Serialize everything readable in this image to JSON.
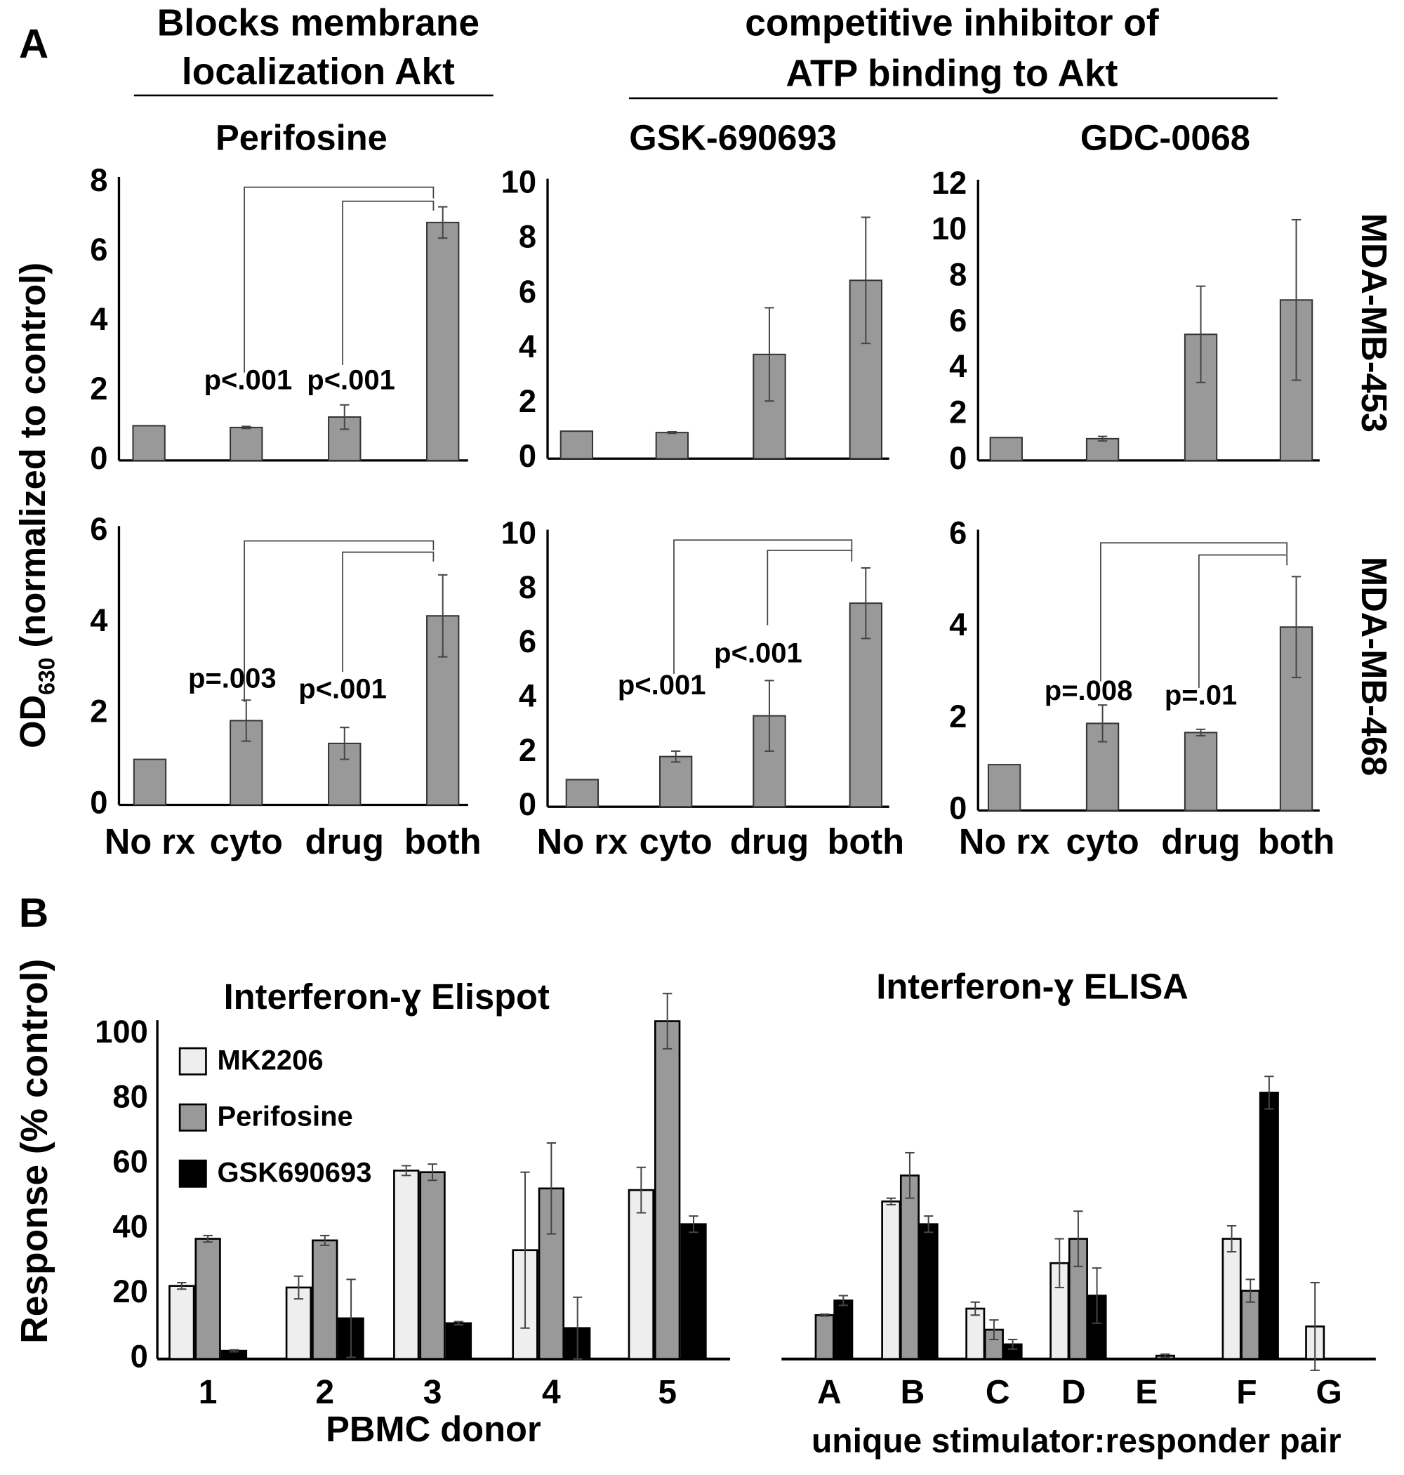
{
  "panel_labels": {
    "a": "A",
    "b": "B"
  },
  "headers": {
    "group1_line1": "Blocks membrane",
    "group1_line2": "localization Akt",
    "group2_line1": "competitive inhibitor of",
    "group2_line2": "ATP binding to Akt"
  },
  "row_labels": [
    "MDA-MB-453",
    "MDA-MB-468"
  ],
  "ylabel_a": "OD",
  "ylabel_a_sub": "630",
  "ylabel_a_rest": " (normalized to control)",
  "ylabel_b": "Response (% control)",
  "colors": {
    "mk2206": "#eeeeee",
    "perifosine": "#999999",
    "gsk690693": "#000000",
    "panel_a_bar": "#999999"
  },
  "chart_data": [
    {
      "type": "bar",
      "title": "Perifosine",
      "row": "MDA-MB-453",
      "ylim": [
        0,
        8
      ],
      "yticks": [
        0,
        2,
        4,
        6,
        8
      ],
      "values": [
        1.0,
        0.95,
        1.25,
        6.85
      ],
      "errors": [
        0,
        0.03,
        0.35,
        0.45
      ],
      "annotations": [
        {
          "from": 1,
          "to": 3,
          "label": "p<.001"
        },
        {
          "from": 2,
          "to": 3,
          "label": "p<.001"
        }
      ]
    },
    {
      "type": "bar",
      "title": "GSK-690693",
      "row": "MDA-MB-453",
      "ylim": [
        0,
        10
      ],
      "yticks": [
        0,
        2,
        4,
        6,
        8,
        10
      ],
      "values": [
        1.0,
        0.95,
        3.8,
        6.5
      ],
      "errors": [
        0,
        0.03,
        1.7,
        2.3
      ],
      "annotations": []
    },
    {
      "type": "bar",
      "title": "GDC-0068",
      "row": "MDA-MB-453",
      "ylim": [
        0,
        12
      ],
      "yticks": [
        0,
        2,
        4,
        6,
        8,
        10,
        12
      ],
      "values": [
        1.0,
        0.95,
        5.5,
        7.0
      ],
      "errors": [
        0,
        0.1,
        2.1,
        3.5
      ],
      "annotations": []
    },
    {
      "type": "bar",
      "row": "MDA-MB-468",
      "ylim": [
        0,
        6
      ],
      "yticks": [
        0,
        2,
        4,
        6
      ],
      "categories": [
        "No rx",
        "cyto",
        "drug",
        "both"
      ],
      "values": [
        1.0,
        1.85,
        1.35,
        4.15
      ],
      "errors": [
        0,
        0.45,
        0.35,
        0.9
      ],
      "annotations": [
        {
          "from": 1,
          "to": 3,
          "label": "p=.003"
        },
        {
          "from": 2,
          "to": 3,
          "label": "p<.001"
        }
      ]
    },
    {
      "type": "bar",
      "row": "MDA-MB-468",
      "ylim": [
        0,
        10
      ],
      "yticks": [
        0,
        2,
        4,
        6,
        8,
        10
      ],
      "categories": [
        "No rx",
        "cyto",
        "drug",
        "both"
      ],
      "values": [
        1.0,
        1.85,
        3.35,
        7.5
      ],
      "errors": [
        0,
        0.2,
        1.3,
        1.3
      ],
      "annotations": [
        {
          "from": 1,
          "to": 3,
          "label": "p<.001"
        },
        {
          "from": 2,
          "to": 3,
          "label": "p<.001"
        }
      ]
    },
    {
      "type": "bar",
      "row": "MDA-MB-468",
      "ylim": [
        0,
        6
      ],
      "yticks": [
        0,
        2,
        4,
        6
      ],
      "categories": [
        "No rx",
        "cyto",
        "drug",
        "both"
      ],
      "values": [
        1.0,
        1.9,
        1.7,
        4.0
      ],
      "errors": [
        0,
        0.4,
        0.07,
        1.1
      ],
      "annotations": [
        {
          "from": 1,
          "to": 3,
          "label": "p=.008"
        },
        {
          "from": 2,
          "to": 3,
          "label": "p=.01"
        }
      ]
    },
    {
      "type": "bar",
      "title": "Interferon-ɣ Elispot",
      "xlabel": "PBMC donor",
      "ylim": [
        0,
        100
      ],
      "yticks": [
        0,
        20,
        40,
        60,
        80,
        100
      ],
      "legend": "top-left",
      "categories": [
        "1",
        "2",
        "3",
        "4",
        "5"
      ],
      "series": [
        {
          "name": "MK2206",
          "values": [
            22.5,
            22,
            58,
            33.5,
            52
          ],
          "errors": [
            1,
            3.5,
            1.5,
            24,
            7
          ]
        },
        {
          "name": "Perifosine",
          "values": [
            37,
            36.5,
            57.5,
            52.5,
            104
          ],
          "errors": [
            1,
            1.5,
            2.5,
            14,
            8.5
          ]
        },
        {
          "name": "GSK690693",
          "values": [
            2.5,
            12.5,
            11,
            9.5,
            41.5
          ],
          "errors": [
            0.3,
            12,
            0.5,
            9.5,
            2.5
          ]
        }
      ]
    },
    {
      "type": "bar",
      "title": "Interferon-ɣ ELISA",
      "xlabel": "unique stimulator:responder pair",
      "ylim": [
        0,
        100
      ],
      "categories": [
        "A",
        "B",
        "C",
        "D",
        "E",
        "F",
        "G"
      ],
      "series": [
        {
          "name": "MK2206",
          "values": [
            null,
            48.5,
            15.5,
            29.5,
            null,
            37,
            10
          ],
          "errors": [
            0,
            1,
            2,
            7.5,
            0,
            4,
            13.5
          ]
        },
        {
          "name": "Perifosine",
          "values": [
            13.5,
            56.5,
            9,
            37,
            1,
            21,
            null
          ],
          "errors": [
            0.3,
            7,
            3,
            8.5,
            0.5,
            3.5,
            0
          ]
        },
        {
          "name": "GSK690693",
          "values": [
            18,
            41.5,
            4.5,
            19.5,
            null,
            82,
            null
          ],
          "errors": [
            1.5,
            2.5,
            1.5,
            8.5,
            0,
            5,
            0
          ]
        }
      ]
    }
  ]
}
